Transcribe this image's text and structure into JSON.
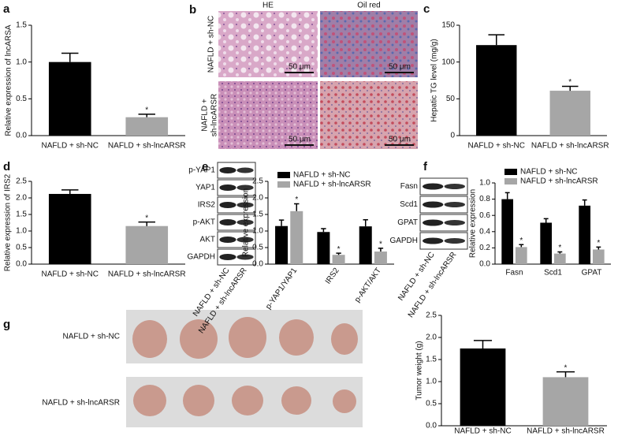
{
  "chart_data": [
    {
      "type": "bar",
      "label": "a",
      "ylabel": "Relative expression of lncARSA",
      "categories": [
        "NAFLD + sh-NC",
        "NAFLD + sh-lncARSR"
      ],
      "values": [
        1.0,
        0.25
      ],
      "errors": [
        0.12,
        0.04
      ],
      "colors": [
        "#000000",
        "#a6a6a6"
      ],
      "significance": [
        null,
        "*"
      ],
      "ylim": [
        0,
        1.5
      ],
      "yticks": [
        {
          "value": 0,
          "label": "0.0"
        },
        0.5,
        {
          "value": 1,
          "label": "1.0"
        },
        1.5
      ]
    },
    {
      "type": "bar",
      "label": "c",
      "ylabel": "Hepatic TG level (mg/g)",
      "categories": [
        "NAFLD + sh-NC",
        "NAFLD + sh-lncARSR"
      ],
      "values": [
        123,
        61
      ],
      "errors": [
        14,
        6
      ],
      "colors": [
        "#000000",
        "#a6a6a6"
      ],
      "significance": [
        null,
        "*"
      ],
      "ylim": [
        0,
        150
      ],
      "yticks": [
        0,
        50,
        100,
        150
      ]
    },
    {
      "type": "bar",
      "label": "d",
      "ylabel": "Relative expression of IRS2",
      "categories": [
        "NAFLD + sh-NC",
        "NAFLD + sh-lncARSR"
      ],
      "values": [
        2.12,
        1.15
      ],
      "errors": [
        0.12,
        0.12
      ],
      "colors": [
        "#000000",
        "#a6a6a6"
      ],
      "significance": [
        null,
        "*"
      ],
      "ylim": [
        0,
        2.5
      ],
      "yticks": [
        {
          "value": 0,
          "label": "0.0"
        },
        0.5,
        {
          "value": 1,
          "label": "1.0"
        },
        1.5,
        {
          "value": 2,
          "label": "2.0"
        },
        2.5
      ]
    },
    {
      "type": "bar",
      "label": "e",
      "ylabel": "Relative expression",
      "categories": [
        "p-YAP1/YAP1",
        "IRS2",
        "p-AKT/AKT"
      ],
      "series": [
        {
          "name": "NAFLD + sh-NC",
          "color": "#000000",
          "values": [
            1.15,
            0.97,
            1.14
          ],
          "errors": [
            0.18,
            0.1,
            0.2
          ],
          "significance": [
            null,
            null,
            null
          ]
        },
        {
          "name": "NAFLD + sh-lncARSR",
          "color": "#a6a6a6",
          "values": [
            1.6,
            0.28,
            0.38
          ],
          "errors": [
            0.22,
            0.05,
            0.1
          ],
          "significance": [
            "*",
            "*",
            "*"
          ]
        }
      ],
      "ylim": [
        0,
        2.5
      ],
      "yticks": [
        {
          "value": 0,
          "label": "0.0"
        },
        0.5,
        {
          "value": 1,
          "label": "1.0"
        },
        1.5,
        {
          "value": 2,
          "label": "2.0"
        },
        2.5
      ]
    },
    {
      "type": "bar",
      "label": "f",
      "ylabel": "Relative expression",
      "categories": [
        "Fasn",
        "Scd1",
        "GPAT"
      ],
      "series": [
        {
          "name": "NAFLD + sh-NC",
          "color": "#000000",
          "values": [
            0.8,
            0.51,
            0.72
          ],
          "errors": [
            0.08,
            0.05,
            0.07
          ],
          "significance": [
            null,
            null,
            null
          ]
        },
        {
          "name": "NAFLD + sh-lncARSR",
          "color": "#a6a6a6",
          "values": [
            0.21,
            0.13,
            0.18
          ],
          "errors": [
            0.03,
            0.02,
            0.03
          ],
          "significance": [
            "*",
            "*",
            "*"
          ]
        }
      ],
      "ylim": [
        0,
        1
      ],
      "yticks": [
        {
          "value": 0,
          "label": "0.0"
        },
        0.2,
        0.4,
        0.6,
        0.8,
        {
          "value": 1,
          "label": "1.0"
        }
      ]
    },
    {
      "type": "bar",
      "label": "g",
      "ylabel": "Tumor weight (g)",
      "categories": [
        "NAFLD + sh-NC",
        "NAFLD + sh-lncARSR"
      ],
      "values": [
        1.75,
        1.1
      ],
      "errors": [
        0.18,
        0.12
      ],
      "colors": [
        "#000000",
        "#a6a6a6"
      ],
      "significance": [
        null,
        "*"
      ],
      "ylim": [
        0,
        2.5
      ],
      "yticks": [
        {
          "value": 0,
          "label": "0.0"
        },
        0.5,
        {
          "value": 1,
          "label": "1.0"
        },
        1.5,
        {
          "value": 2,
          "label": "2.0"
        },
        2.5
      ]
    }
  ],
  "histology": {
    "label": "b",
    "columns": [
      "HE",
      "Oil red"
    ],
    "rows": [
      "NAFLD + sh-NC",
      [
        "NAFLD +",
        "sh-lncARSR"
      ]
    ],
    "scale_bar": "50 μm"
  },
  "blots": [
    {
      "proteins": [
        "p-YAP1",
        "YAP1",
        "IRS2",
        "p-AKT",
        "AKT",
        "GAPDH"
      ],
      "lanes": [
        "NAFLD + sh-NC",
        "NAFLD + sh-lncARSR"
      ]
    },
    {
      "proteins": [
        "Fasn",
        "Scd1",
        "GPAT",
        "GAPDH"
      ],
      "lanes": [
        "NAFLD + sh-NC",
        "NAFLD + sh-lncARSR"
      ]
    }
  ],
  "tumors": {
    "rows": [
      "NAFLD + sh-NC",
      "NAFLD + sh-lncARSR"
    ]
  }
}
